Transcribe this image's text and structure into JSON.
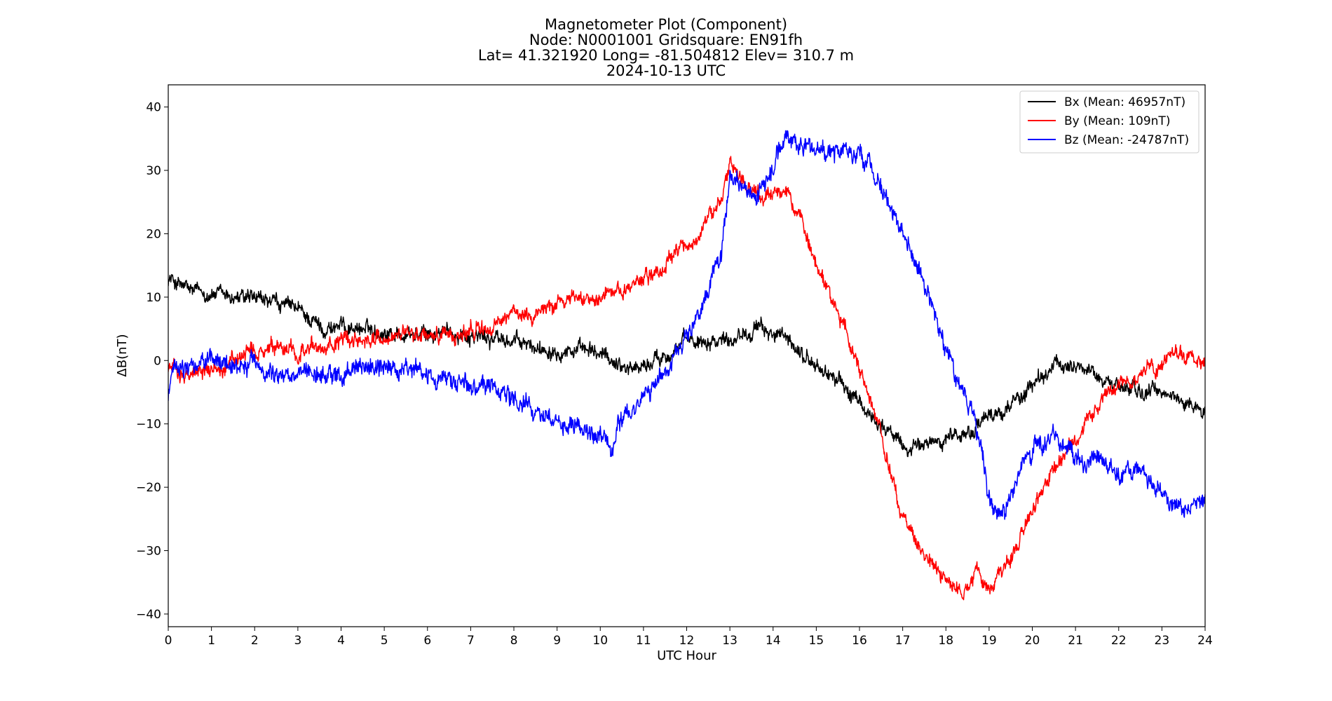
{
  "chart_data": {
    "type": "line",
    "title_lines": [
      "Magnetometer Plot (Component)",
      "Node:  N0001001     Gridsquare:  EN91fh",
      "Lat= 41.321920    Long= -81.504812    Elev= 310.7 m",
      "2024-10-13  UTC"
    ],
    "xlabel": "UTC Hour",
    "ylabel": "ΔB(nT)",
    "xlim": [
      0,
      24
    ],
    "ylim": [
      -42,
      43.5
    ],
    "xticks": [
      0,
      1,
      2,
      3,
      4,
      5,
      6,
      7,
      8,
      9,
      10,
      11,
      12,
      13,
      14,
      15,
      16,
      17,
      18,
      19,
      20,
      21,
      22,
      23,
      24
    ],
    "xtick_labels": [
      "0",
      "1",
      "2",
      "3",
      "4",
      "5",
      "6",
      "7",
      "8",
      "9",
      "10",
      "11",
      "12",
      "13",
      "14",
      "15",
      "16",
      "17",
      "18",
      "19",
      "20",
      "21",
      "22",
      "23",
      "24"
    ],
    "yticks": [
      -40,
      -30,
      -20,
      -10,
      0,
      10,
      20,
      30,
      40
    ],
    "ytick_labels": [
      "−40",
      "−30",
      "−20",
      "−10",
      "0",
      "10",
      "20",
      "30",
      "40"
    ],
    "grid": false,
    "legend_position": "upper right",
    "series": [
      {
        "name": "Bx (Mean: 46957nT)",
        "color": "#000000",
        "noise": 1.3,
        "x": [
          0,
          0.25,
          0.5,
          1,
          1.5,
          2,
          2.5,
          3,
          3.3,
          3.6,
          4,
          4.5,
          5,
          5.5,
          6,
          6.5,
          7,
          7.5,
          8,
          8.5,
          9,
          9.5,
          10,
          10.3,
          10.6,
          11,
          11.5,
          12,
          12.5,
          13,
          13.5,
          14,
          14.5,
          15,
          15.5,
          16,
          16.5,
          17,
          17.3,
          17.6,
          18,
          18.5,
          19,
          19.5,
          20,
          20.5,
          21,
          21.5,
          22,
          22.5,
          23,
          23.5,
          24
        ],
        "y": [
          13,
          12,
          11,
          10.5,
          10,
          9.5,
          9,
          8,
          6.5,
          5,
          5.5,
          5,
          4.5,
          4,
          4,
          4.5,
          4,
          3.5,
          3,
          2,
          2,
          1.5,
          1,
          0,
          -1,
          -1,
          1,
          3,
          3.5,
          3.5,
          5,
          4.5,
          2,
          -1,
          -3,
          -7,
          -10,
          -13.5,
          -14,
          -13,
          -12,
          -11.5,
          -9,
          -7,
          -4,
          -1,
          -0.5,
          -2.5,
          -4,
          -5,
          -5,
          -6.5,
          -8
        ]
      },
      {
        "name": "By (Mean: 109nT)",
        "color": "#ff0000",
        "noise": 1.3,
        "x": [
          0,
          0.5,
          1,
          1.5,
          2,
          2.5,
          3,
          3.5,
          4,
          4.5,
          5,
          5.5,
          6,
          6.5,
          7,
          7.5,
          8,
          8.5,
          9,
          9.5,
          10,
          10.5,
          11,
          11.5,
          12,
          12.5,
          12.8,
          13,
          13.2,
          13.5,
          13.8,
          14,
          14.3,
          14.6,
          15,
          15.5,
          16,
          16.5,
          17,
          17.5,
          18,
          18.5,
          18.7,
          19,
          19.5,
          20,
          20.5,
          21,
          21.5,
          22,
          22.5,
          23,
          23.3,
          23.6,
          24
        ],
        "y": [
          -1,
          -2,
          -1.5,
          0,
          1,
          1.5,
          1.5,
          2,
          3,
          3.5,
          3.5,
          4,
          4,
          4,
          4.5,
          5,
          7.5,
          7.5,
          9.5,
          10,
          10.5,
          11,
          13,
          15,
          18,
          22,
          26,
          32,
          29,
          27,
          25,
          26,
          27,
          23,
          15,
          8,
          -2,
          -12,
          -25,
          -31,
          -35,
          -36.5,
          -33,
          -36,
          -31,
          -24,
          -17,
          -12,
          -7.5,
          -4,
          -2,
          -0.5,
          1.5,
          0.5,
          -0.5
        ]
      },
      {
        "name": "Bz (Mean: -24787nT)",
        "color": "#0000ff",
        "noise": 1.6,
        "x": [
          0,
          0.1,
          0.3,
          0.5,
          1,
          1.5,
          2,
          2.5,
          3,
          3.5,
          4,
          4.5,
          5,
          5.5,
          6,
          6.5,
          7,
          7.5,
          8,
          8.5,
          9,
          9.5,
          10,
          10.3,
          10.5,
          11,
          11.5,
          12,
          12.5,
          12.8,
          13,
          13.3,
          13.6,
          14,
          14.3,
          14.6,
          15,
          15.5,
          16,
          16.3,
          16.6,
          17,
          17.3,
          17.6,
          18,
          18.3,
          18.6,
          18.8,
          19,
          19.3,
          19.6,
          20,
          20.5,
          21,
          21.5,
          22,
          22.5,
          23,
          23.3,
          23.6,
          24
        ],
        "y": [
          -6,
          -1,
          -1.5,
          -1.5,
          0,
          -0.5,
          -0.5,
          -2,
          -2,
          -2.5,
          -2,
          -1.5,
          -1,
          -1.5,
          -2.5,
          -3,
          -3.5,
          -4.5,
          -6,
          -8,
          -9,
          -11,
          -12,
          -15,
          -9,
          -6,
          -2,
          4,
          10,
          18,
          28,
          27,
          26,
          30,
          36,
          35,
          33,
          33,
          33,
          30,
          26,
          20,
          15,
          10,
          2,
          -4,
          -8,
          -13,
          -22,
          -25,
          -18,
          -14,
          -12,
          -15,
          -16,
          -18,
          -17,
          -21,
          -23,
          -23,
          -21
        ]
      }
    ]
  }
}
